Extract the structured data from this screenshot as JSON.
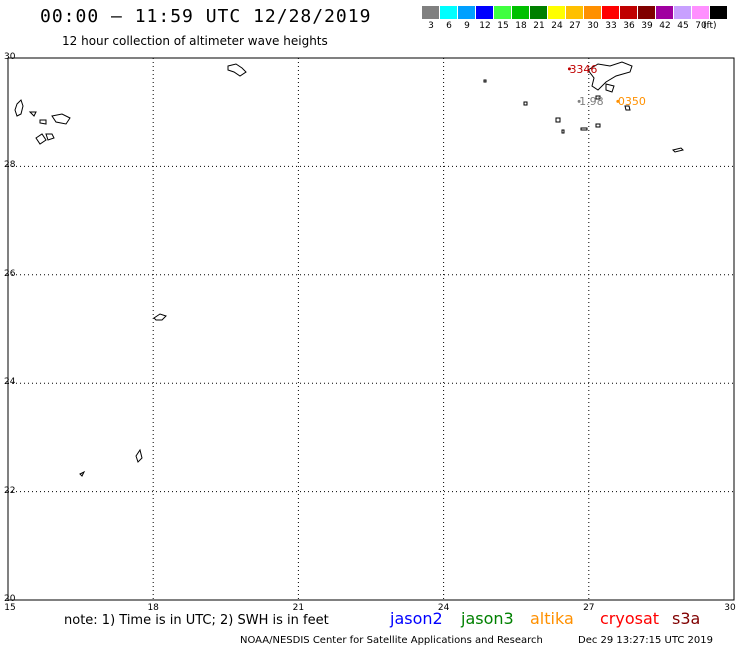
{
  "title": "00:00 – 11:59 UTC 12/28/2019",
  "subtitle": "12 hour collection of altimeter wave heights",
  "legend": {
    "unit": "(ft)",
    "swatches": [
      {
        "color": "#808080",
        "label": "3"
      },
      {
        "color": "#00ffff",
        "label": "6"
      },
      {
        "color": "#00a0ff",
        "label": "9"
      },
      {
        "color": "#0000ff",
        "label": "12"
      },
      {
        "color": "#40ff40",
        "label": "15"
      },
      {
        "color": "#00c000",
        "label": "18"
      },
      {
        "color": "#008000",
        "label": "21"
      },
      {
        "color": "#ffff00",
        "label": "24"
      },
      {
        "color": "#ffc000",
        "label": "27"
      },
      {
        "color": "#ff9000",
        "label": "30"
      },
      {
        "color": "#ff0000",
        "label": "33"
      },
      {
        "color": "#c00000",
        "label": "36"
      },
      {
        "color": "#800000",
        "label": "39"
      },
      {
        "color": "#a000a0",
        "label": "42"
      },
      {
        "color": "#c8a0ff",
        "label": "45"
      },
      {
        "color": "#ff90ff",
        "label": "70"
      },
      {
        "color": "#000000",
        "label": ""
      }
    ]
  },
  "map": {
    "lat_labels": [
      "30",
      "28",
      "26",
      "24",
      "22",
      "20"
    ],
    "lon_labels": [
      "15",
      "18",
      "21",
      "24",
      "27",
      "30"
    ],
    "lat_range": [
      20,
      30
    ],
    "lon_range": [
      15,
      30
    ]
  },
  "observations": [
    {
      "text": "3346",
      "color": "#c00000",
      "lon": 26.6,
      "lat": 29.8
    },
    {
      "text": "1.98",
      "color": "#808080",
      "lon": 26.8,
      "lat": 29.2
    },
    {
      "text": "0350",
      "color": "#ff9000",
      "lon": 27.6,
      "lat": 29.2
    }
  ],
  "footer": {
    "note": "note: 1) Time is in UTC; 2) SWH is in feet",
    "satellites": [
      {
        "name": "jason2",
        "color": "#0000ff"
      },
      {
        "name": "jason3",
        "color": "#008000"
      },
      {
        "name": "altika",
        "color": "#ff9000"
      },
      {
        "name": "cryosat",
        "color": "#ff0000"
      },
      {
        "name": "s3a",
        "color": "#800000"
      }
    ],
    "credit": "NOAA/NESDIS Center for Satellite Applications and Research",
    "timestamp": "Dec 29 13:27:15 UTC 2019"
  }
}
